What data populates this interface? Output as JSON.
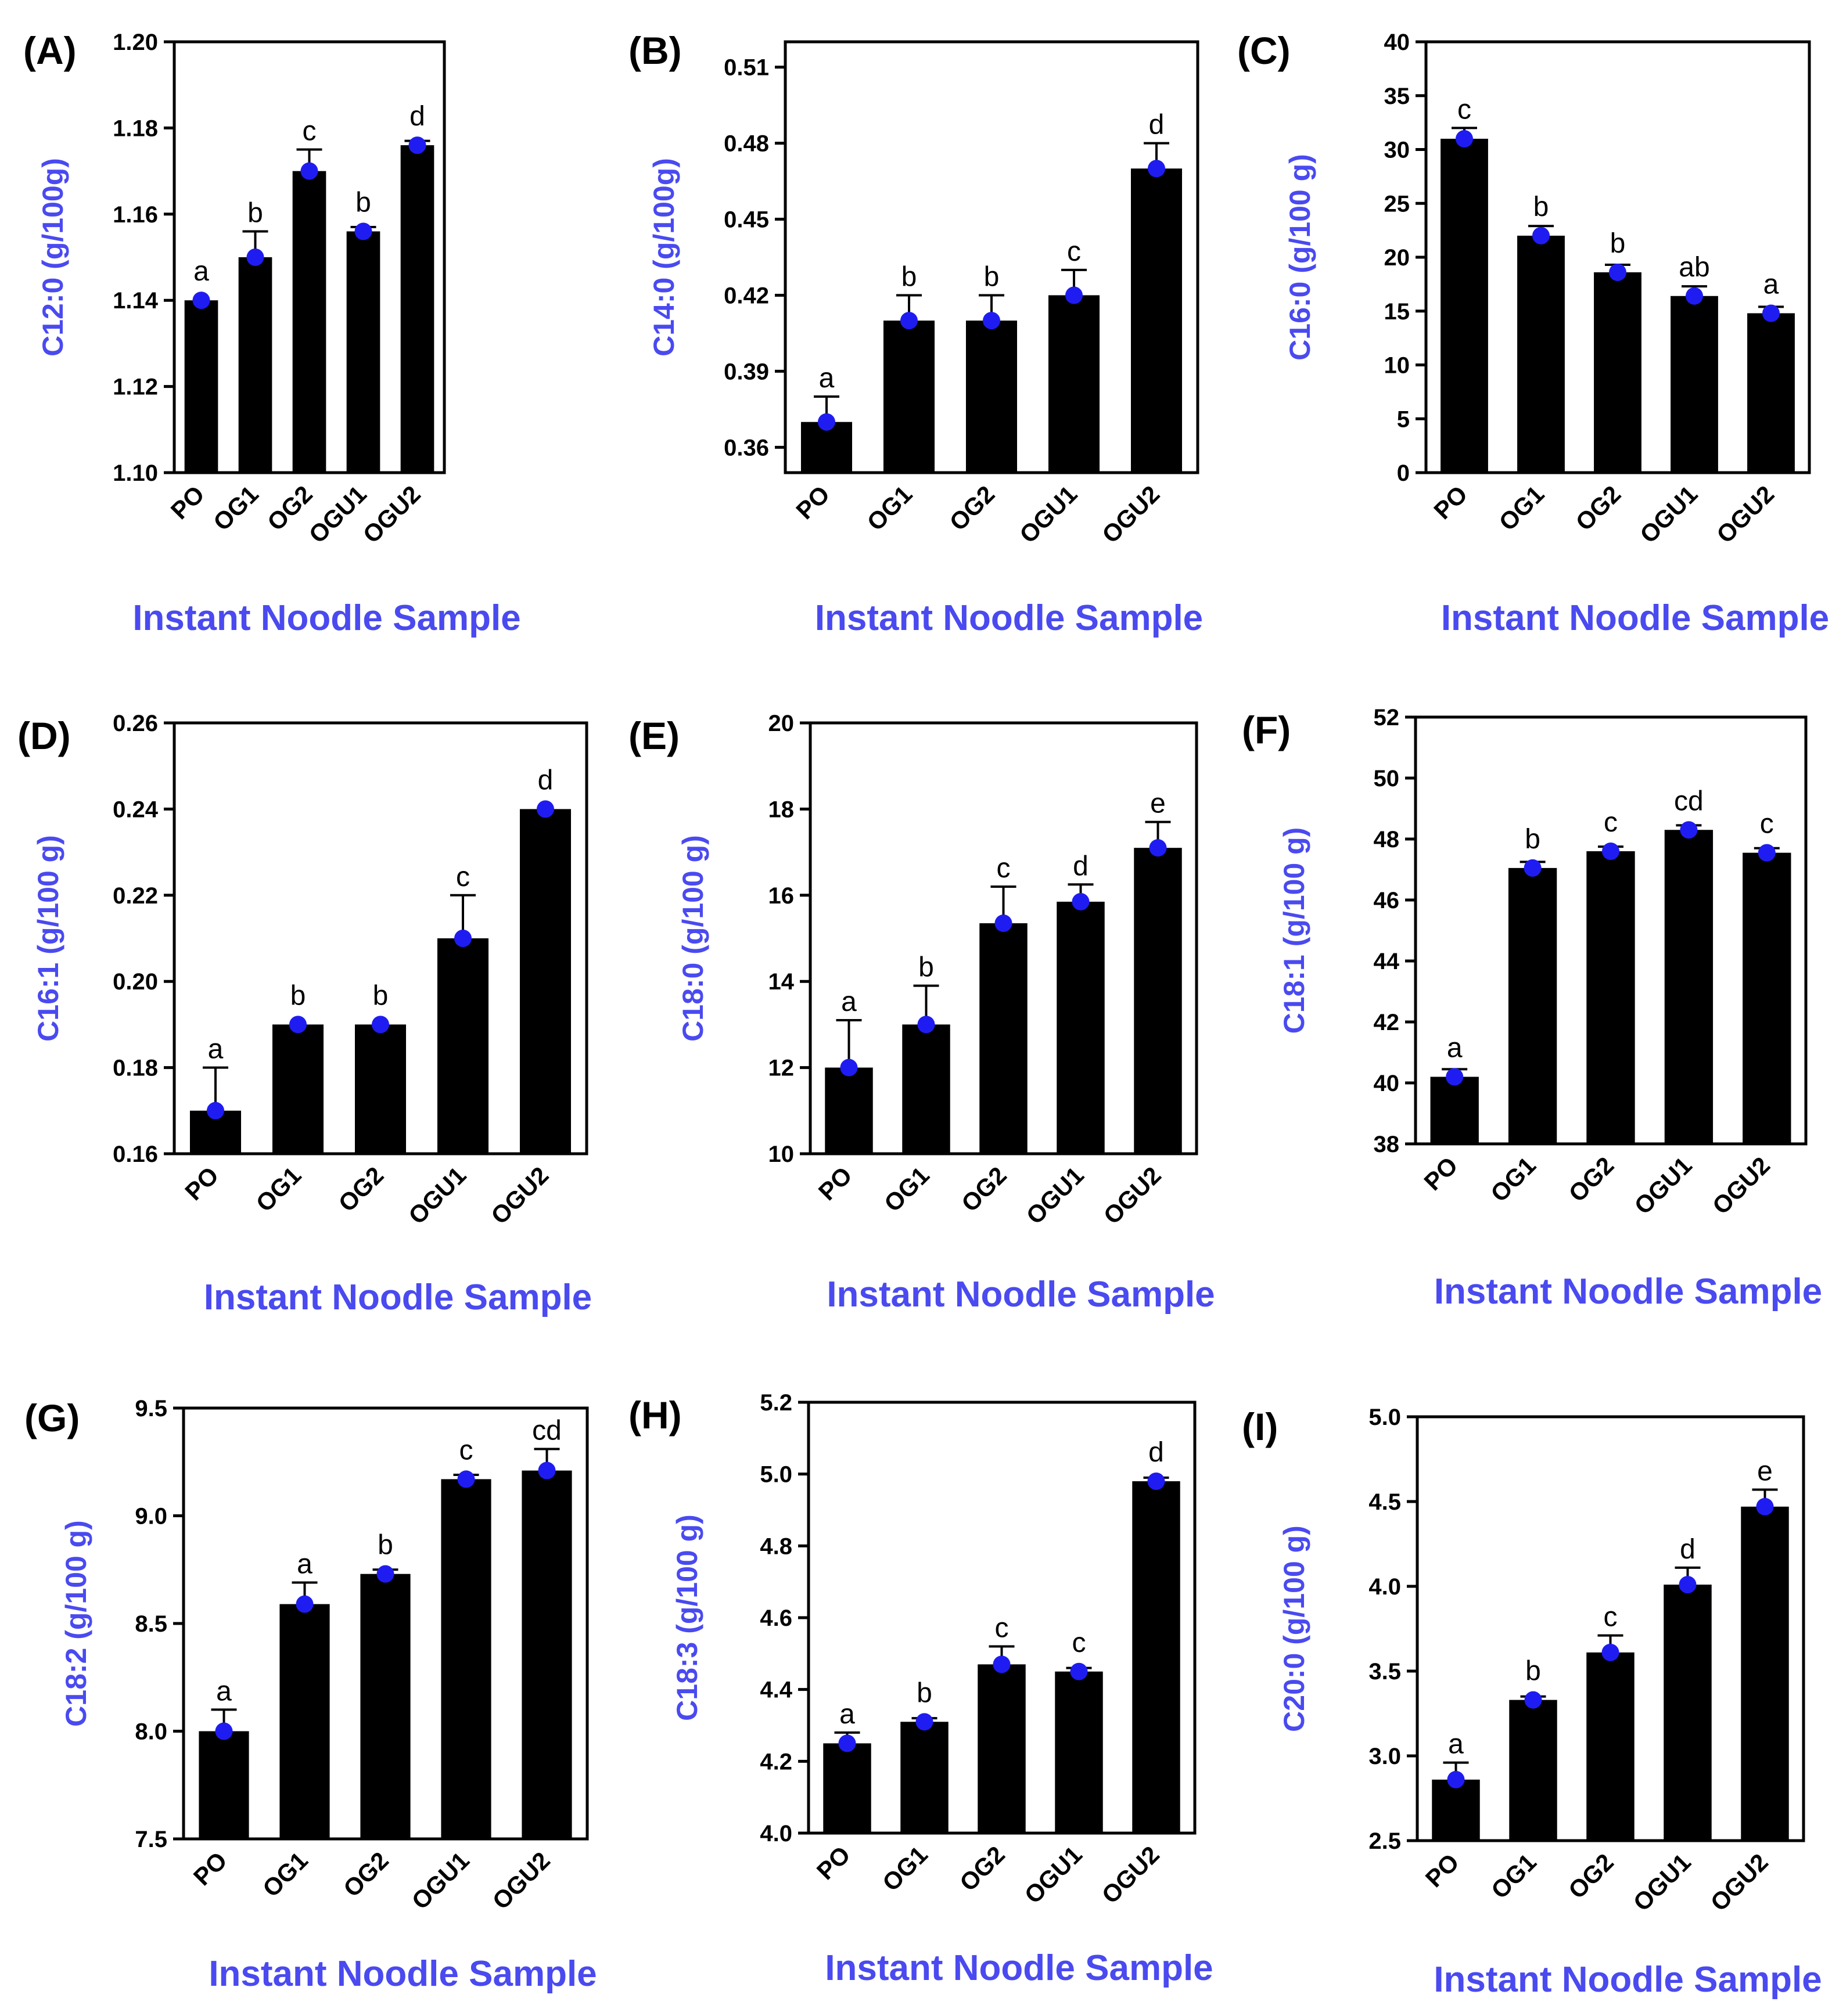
{
  "x_axis_title": "Instant Noodle Sample",
  "colors": {
    "bar": "#000000",
    "point": "#1f1cf2",
    "axis_title": "#4a4af0",
    "axis": "#000000"
  },
  "chart_data": [
    {
      "type": "bar",
      "panel": "(A)",
      "ylabel": "C12:0 (g/100g)",
      "xlabel": "Instant Noodle Sample",
      "categories": [
        "PO",
        "OG1",
        "OG2",
        "OGU1",
        "OGU2"
      ],
      "values": [
        1.14,
        1.15,
        1.17,
        1.156,
        1.176
      ],
      "errors": [
        0.0,
        0.006,
        0.005,
        0.001,
        0.001
      ],
      "significance": [
        "a",
        "b",
        "c",
        "b",
        "d"
      ],
      "ylim": [
        1.1,
        1.2
      ],
      "yticks": [
        "1.10",
        "1.12",
        "1.14",
        "1.16",
        "1.18",
        "1.20"
      ]
    },
    {
      "type": "bar",
      "panel": "(B)",
      "ylabel": "C14:0 (g/100g)",
      "xlabel": "Instant Noodle Sample",
      "categories": [
        "PO",
        "OG1",
        "OG2",
        "OGU1",
        "OGU2"
      ],
      "values": [
        0.37,
        0.41,
        0.41,
        0.42,
        0.47
      ],
      "errors": [
        0.01,
        0.01,
        0.01,
        0.01,
        0.01
      ],
      "significance": [
        "a",
        "b",
        "b",
        "c",
        "d"
      ],
      "ylim": [
        0.35,
        0.52
      ],
      "yticks": [
        "0.36",
        "0.39",
        "0.42",
        "0.45",
        "0.48",
        "0.51"
      ]
    },
    {
      "type": "bar",
      "panel": "(C)",
      "ylabel": "C16:0 (g/100 g)",
      "xlabel": "Instant Noodle Sample",
      "categories": [
        "PO",
        "OG1",
        "OG2",
        "OGU1",
        "OGU2"
      ],
      "values": [
        31.0,
        22.0,
        18.6,
        16.4,
        14.8
      ],
      "errors": [
        1.0,
        0.9,
        0.7,
        0.9,
        0.6
      ],
      "significance": [
        "c",
        "b",
        "b",
        "ab",
        "a"
      ],
      "ylim": [
        0,
        40
      ],
      "yticks": [
        "0",
        "5",
        "10",
        "15",
        "20",
        "25",
        "30",
        "35",
        "40"
      ]
    },
    {
      "type": "bar",
      "panel": "(D)",
      "ylabel": "C16:1 (g/100 g)",
      "xlabel": "Instant Noodle Sample",
      "categories": [
        "PO",
        "OG1",
        "OG2",
        "OGU1",
        "OGU2"
      ],
      "values": [
        0.17,
        0.19,
        0.19,
        0.21,
        0.24
      ],
      "errors": [
        0.01,
        0.0,
        0.0,
        0.01,
        0.0
      ],
      "significance": [
        "a",
        "b",
        "b",
        "c",
        "d"
      ],
      "ylim": [
        0.16,
        0.26
      ],
      "yticks": [
        "0.16",
        "0.18",
        "0.20",
        "0.22",
        "0.24",
        "0.26"
      ]
    },
    {
      "type": "bar",
      "panel": "(E)",
      "ylabel": "C18:0 (g/100 g)",
      "xlabel": "Instant Noodle Sample",
      "categories": [
        "PO",
        "OG1",
        "OG2",
        "OGU1",
        "OGU2"
      ],
      "values": [
        12.0,
        13.0,
        15.35,
        15.85,
        17.1
      ],
      "errors": [
        1.1,
        0.9,
        0.85,
        0.4,
        0.6
      ],
      "significance": [
        "a",
        "b",
        "c",
        "d",
        "e"
      ],
      "ylim": [
        10,
        20
      ],
      "yticks": [
        "10",
        "12",
        "14",
        "16",
        "18",
        "20"
      ]
    },
    {
      "type": "bar",
      "panel": "(F)",
      "ylabel": "C18:1 (g/100 g)",
      "xlabel": "Instant Noodle Sample",
      "categories": [
        "PO",
        "OG1",
        "OG2",
        "OGU1",
        "OGU2"
      ],
      "values": [
        40.2,
        47.05,
        47.6,
        48.3,
        47.55
      ],
      "errors": [
        0.25,
        0.2,
        0.15,
        0.15,
        0.15
      ],
      "significance": [
        "a",
        "b",
        "c",
        "cd",
        "c"
      ],
      "ylim": [
        38,
        52
      ],
      "yticks": [
        "38",
        "40",
        "42",
        "44",
        "46",
        "48",
        "50",
        "52"
      ]
    },
    {
      "type": "bar",
      "panel": "(G)",
      "ylabel": "C18:2 (g/100 g)",
      "xlabel": "Instant Noodle Sample",
      "categories": [
        "PO",
        "OG1",
        "OG2",
        "OGU1",
        "OGU2"
      ],
      "values": [
        8.0,
        8.59,
        8.73,
        9.17,
        9.21
      ],
      "errors": [
        0.1,
        0.1,
        0.02,
        0.02,
        0.1
      ],
      "significance": [
        "a",
        "a",
        "b",
        "c",
        "cd"
      ],
      "ylim": [
        7.5,
        9.5
      ],
      "yticks": [
        "7.5",
        "8.0",
        "8.5",
        "9.0",
        "9.5"
      ]
    },
    {
      "type": "bar",
      "panel": "(H)",
      "ylabel": "C18:3 (g/100 g)",
      "xlabel": "Instant Noodle Sample",
      "categories": [
        "PO",
        "OG1",
        "OG2",
        "OGU1",
        "OGU2"
      ],
      "values": [
        4.25,
        4.31,
        4.47,
        4.45,
        4.98
      ],
      "errors": [
        0.03,
        0.01,
        0.05,
        0.01,
        0.01
      ],
      "significance": [
        "a",
        "b",
        "c",
        "c",
        "d"
      ],
      "ylim": [
        4.0,
        5.2
      ],
      "yticks": [
        "4.0",
        "4.2",
        "4.4",
        "4.6",
        "4.8",
        "5.0",
        "5.2"
      ]
    },
    {
      "type": "bar",
      "panel": "(I)",
      "ylabel": "C20:0 (g/100 g)",
      "xlabel": "Instant Noodle Sample",
      "categories": [
        "PO",
        "OG1",
        "OG2",
        "OGU1",
        "OGU2"
      ],
      "values": [
        2.86,
        3.33,
        3.61,
        4.01,
        4.47
      ],
      "errors": [
        0.1,
        0.02,
        0.1,
        0.1,
        0.1
      ],
      "significance": [
        "a",
        "b",
        "c",
        "d",
        "e"
      ],
      "ylim": [
        2.5,
        5.0
      ],
      "yticks": [
        "2.5",
        "3.0",
        "3.5",
        "4.0",
        "4.5",
        "5.0"
      ]
    }
  ]
}
